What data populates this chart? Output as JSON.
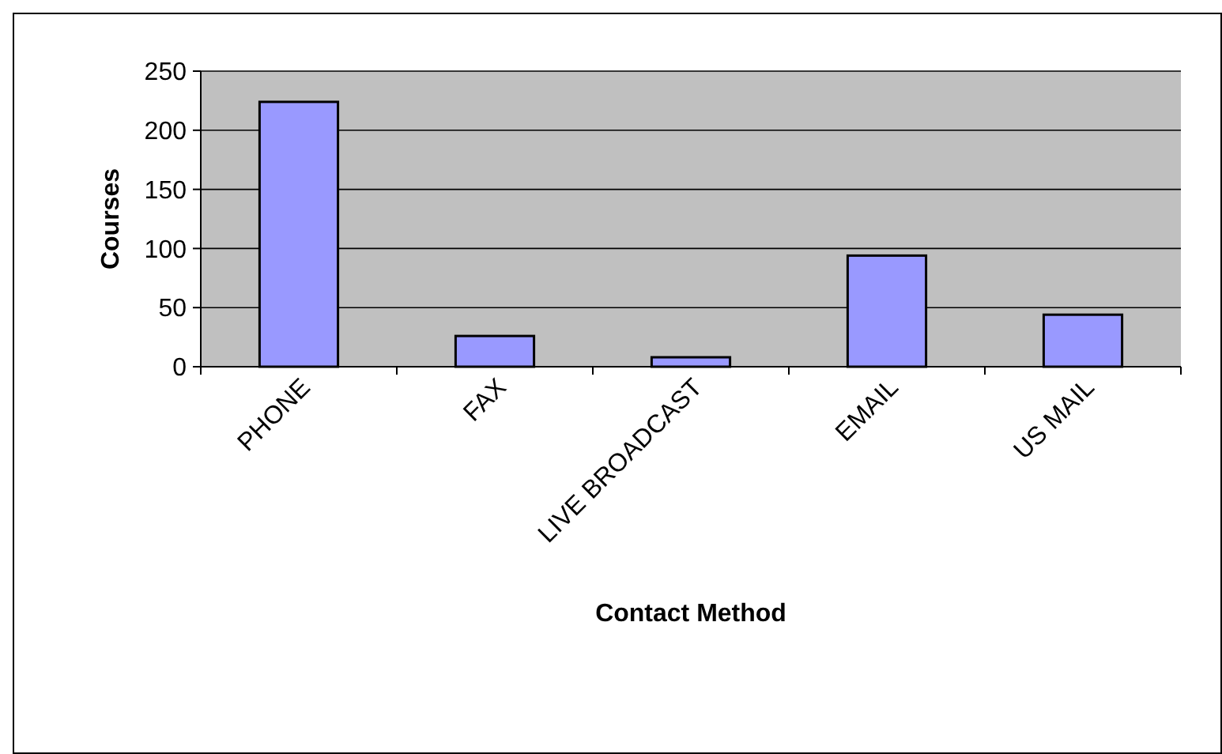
{
  "chart_data": {
    "type": "bar",
    "xlabel": "Contact Method",
    "ylabel": "Courses",
    "categories": [
      "PHONE",
      "FAX",
      "LIVE BROADCAST",
      "EMAIL",
      "US MAIL"
    ],
    "values": [
      224,
      26,
      8,
      94,
      44
    ],
    "color": "#9999ff",
    "ylim": [
      0,
      250
    ],
    "yticks": [
      0,
      50,
      100,
      150,
      200,
      250
    ],
    "grid": "y"
  }
}
